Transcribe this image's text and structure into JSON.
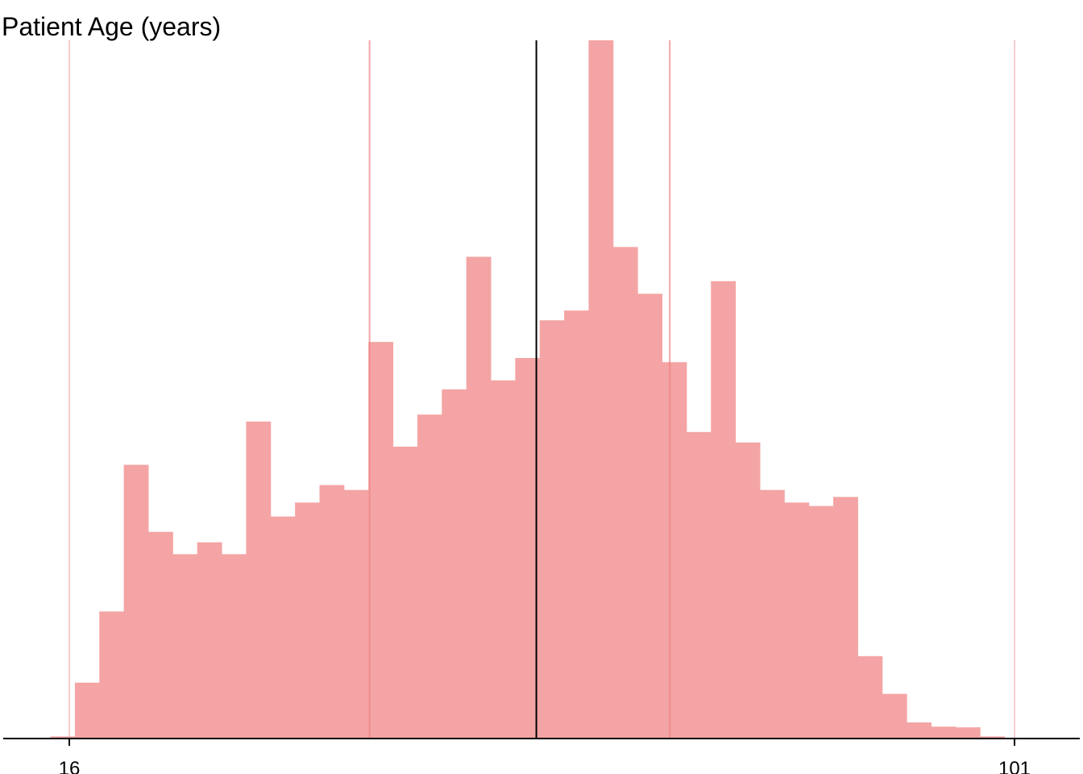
{
  "chart_data": {
    "type": "bar",
    "title": "Patient Age (years)",
    "xlabel": "",
    "ylabel": "",
    "xlim": [
      16,
      101
    ],
    "x_tick_labels": [
      "16",
      "101"
    ],
    "x_tick_values": [
      16,
      101
    ],
    "bin_width": 2.2,
    "ylim": [
      0,
      100
    ],
    "y_axis_shown": false,
    "grid": false,
    "legend": "none",
    "bar_color": "#F4A4A4",
    "ref_line_color": "#F08080",
    "median_line_color": "#000000",
    "bins": [
      {
        "start": 14.3,
        "value": 0.3
      },
      {
        "start": 16.5,
        "value": 8.0
      },
      {
        "start": 18.7,
        "value": 18.2
      },
      {
        "start": 20.9,
        "value": 39.2
      },
      {
        "start": 23.1,
        "value": 29.6
      },
      {
        "start": 25.3,
        "value": 26.4
      },
      {
        "start": 27.5,
        "value": 28.1
      },
      {
        "start": 29.7,
        "value": 26.4
      },
      {
        "start": 31.9,
        "value": 45.4
      },
      {
        "start": 34.1,
        "value": 31.8
      },
      {
        "start": 36.3,
        "value": 33.8
      },
      {
        "start": 38.5,
        "value": 36.3
      },
      {
        "start": 40.7,
        "value": 35.6
      },
      {
        "start": 42.9,
        "value": 56.8
      },
      {
        "start": 45.1,
        "value": 41.8
      },
      {
        "start": 47.3,
        "value": 46.4
      },
      {
        "start": 49.5,
        "value": 50.0
      },
      {
        "start": 51.7,
        "value": 69.0
      },
      {
        "start": 53.9,
        "value": 51.3
      },
      {
        "start": 56.1,
        "value": 54.5
      },
      {
        "start": 58.3,
        "value": 59.9
      },
      {
        "start": 60.5,
        "value": 61.3
      },
      {
        "start": 62.7,
        "value": 100.0
      },
      {
        "start": 64.9,
        "value": 70.4
      },
      {
        "start": 67.1,
        "value": 63.7
      },
      {
        "start": 69.3,
        "value": 53.9
      },
      {
        "start": 71.5,
        "value": 43.9
      },
      {
        "start": 73.7,
        "value": 65.5
      },
      {
        "start": 75.9,
        "value": 42.4
      },
      {
        "start": 78.1,
        "value": 35.6
      },
      {
        "start": 80.3,
        "value": 33.8
      },
      {
        "start": 82.5,
        "value": 33.3
      },
      {
        "start": 84.7,
        "value": 34.6
      },
      {
        "start": 86.9,
        "value": 11.8
      },
      {
        "start": 89.1,
        "value": 6.4
      },
      {
        "start": 91.3,
        "value": 2.3
      },
      {
        "start": 93.5,
        "value": 1.7
      },
      {
        "start": 95.7,
        "value": 1.6
      },
      {
        "start": 97.9,
        "value": 0.3
      }
    ],
    "reference_lines": [
      {
        "x": 16,
        "role": "min"
      },
      {
        "x": 43,
        "role": "q1"
      },
      {
        "x": 70,
        "role": "q3"
      },
      {
        "x": 101,
        "role": "max"
      }
    ],
    "median_line": {
      "x": 58
    }
  }
}
